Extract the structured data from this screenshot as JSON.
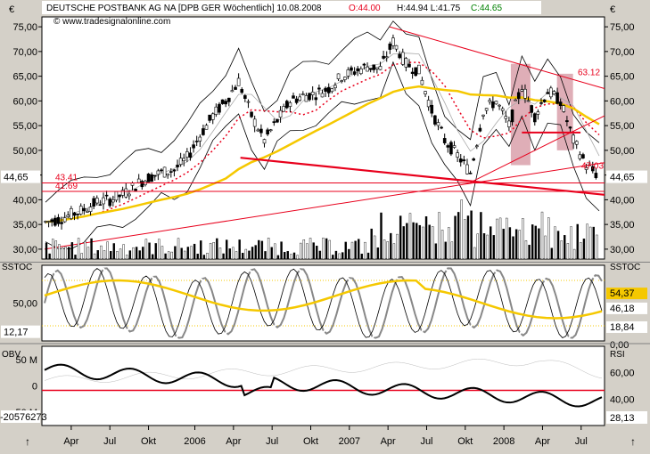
{
  "header": {
    "title": "DEUTSCHE POSTBANK AG NA [DPB GER  Wöchentlich] 10.08.2008",
    "open": "O:44.00",
    "hl": "H:44.94 L:41.75",
    "close": "C:44.65",
    "watermark": "www.tradesignalonline.com"
  },
  "colors": {
    "red": "#e8001c",
    "yellow": "#f5c800",
    "green": "#008000",
    "price_bg": "#ffffff",
    "pink_shade": "#d9a0aa"
  },
  "chart_data": [
    {
      "type": "line",
      "title": "",
      "x": [
        "2005-01",
        "2005-02",
        "2005-03",
        "2005-04",
        "2005-05",
        "2005-06",
        "2005-07",
        "2005-08",
        "2005-09",
        "2005-10",
        "2005-11",
        "2005-12",
        "2006-01",
        "2006-02",
        "2006-03",
        "2006-04",
        "2006-05",
        "2006-06",
        "2006-07",
        "2006-08",
        "2006-09",
        "2006-10",
        "2006-11",
        "2006-12",
        "2007-01",
        "2007-02",
        "2007-03",
        "2007-04",
        "2007-05",
        "2007-06",
        "2007-07",
        "2007-08",
        "2007-09",
        "2007-10",
        "2007-11",
        "2007-12",
        "2008-01",
        "2008-02",
        "2008-03",
        "2008-04",
        "2008-05",
        "2008-06",
        "2008-07",
        "2008-08"
      ],
      "series": [
        {
          "values": [
            35.5,
            36.0,
            37.0,
            38.0,
            39.5,
            40.0,
            41.0,
            43.0,
            44.5,
            45.5,
            46.0,
            48.5,
            53.0,
            57.0,
            60.0,
            64.0,
            57.0,
            52.0,
            56.0,
            60.0,
            61.0,
            61.5,
            62.5,
            65.0,
            66.0,
            67.0,
            66.5,
            72.0,
            67.5,
            66.0,
            58.0,
            52.0,
            49.0,
            45.5,
            58.0,
            60.0,
            55.0,
            63.0,
            57.0,
            62.0,
            60.0,
            52.0,
            47.0,
            44.65
          ]
        }
      ],
      "ylim": [
        28,
        77
      ],
      "y_ticks": [
        "30,00",
        "35,00",
        "40,00",
        "45,00",
        "50,00",
        "55,00",
        "60,00",
        "65,00",
        "70,00",
        "75,00"
      ],
      "x_tick_labels": [
        "Apr",
        "Jul",
        "Okt",
        "2006",
        "Apr",
        "Jul",
        "Okt",
        "2007",
        "Apr",
        "Jul",
        "Okt",
        "2008",
        "Apr",
        "Jul"
      ],
      "last_price_label": "44,65",
      "level_labels": [
        "43.41",
        "41.69",
        "63.12",
        "47.03"
      ],
      "levels": [
        43.41,
        41.69
      ]
    },
    {
      "type": "line",
      "title": "SSTOC",
      "y_ticks": [
        "50,00"
      ],
      "left_value": "12,17",
      "right_labels": [
        "54,37",
        "46,18",
        "18,84",
        "0,00"
      ],
      "ylim": [
        0,
        100
      ]
    },
    {
      "type": "line",
      "title": "OBV",
      "right_title": "RSI",
      "y_ticks": [
        "50 M",
        "0",
        "-50 M"
      ],
      "left_value": "-20576273",
      "right_ticks": [
        "60,00",
        "40,00"
      ],
      "right_value": "28,13"
    }
  ]
}
